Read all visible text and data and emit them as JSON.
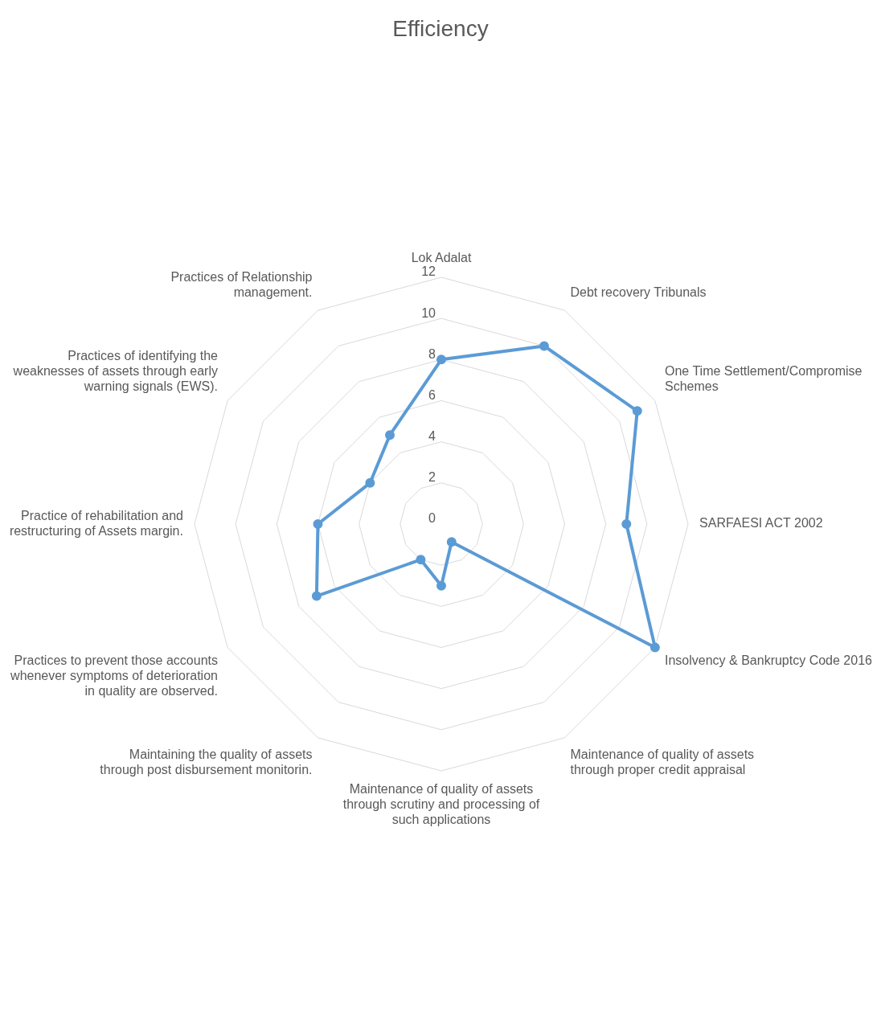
{
  "chart_data": {
    "type": "radar",
    "title": "Efficiency",
    "categories": [
      "Lok Adalat",
      "Debt recovery Tribunals",
      "One Time Settlement/Compromise Schemes",
      "SARFAESI ACT 2002",
      "Insolvency & Bankruptcy Code 2016",
      "Maintenance of quality of assets through proper credit appraisal",
      "Maintenance of quality of assets through scrutiny and processing of such applications",
      "Maintaining the quality of assets through post disbursement monitorin.",
      "Practices to prevent those accounts whenever symptoms of deterioration in quality are observed.",
      "Practice of rehabilitation and restructuring of Assets margin.",
      "Practices of identifying the weaknesses of assets through early warning signals (EWS).",
      "Practices of Relationship management."
    ],
    "series": [
      {
        "color": "#5b9bd5",
        "values": [
          8,
          10,
          11,
          9,
          12,
          1,
          3,
          2,
          7,
          6,
          4,
          5
        ]
      }
    ],
    "ylim": [
      0,
      12
    ],
    "yticks": [
      0,
      2,
      4,
      6,
      8,
      10,
      12
    ],
    "grid": true,
    "marker": "circle"
  }
}
